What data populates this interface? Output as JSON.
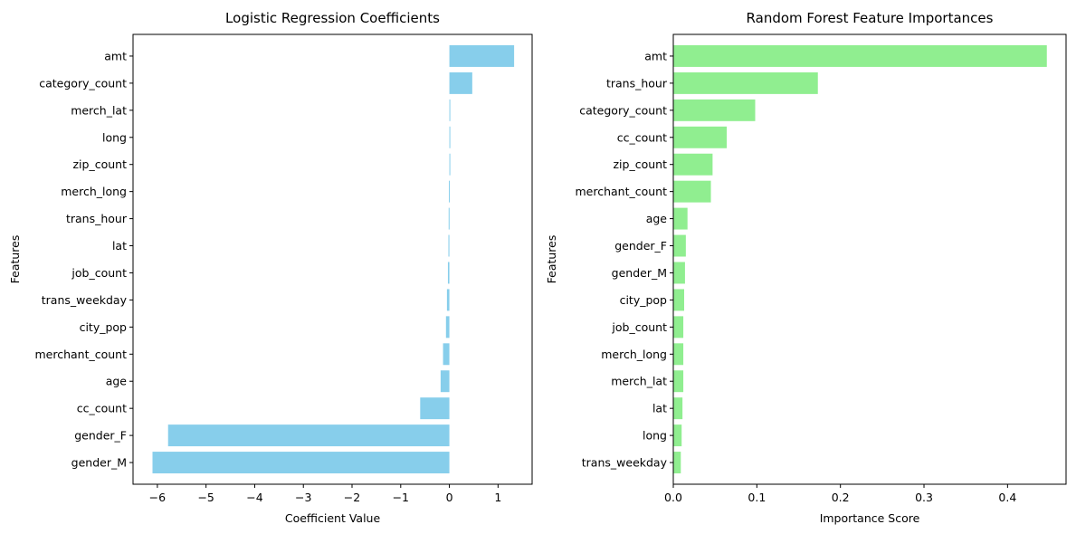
{
  "chart_data": [
    {
      "type": "bar",
      "orientation": "horizontal",
      "title": "Logistic Regression Coefficients",
      "xlabel": "Coefficient Value",
      "ylabel": "Features",
      "bar_color": "#87CEEB",
      "xlim": [
        -6.5,
        1.7
      ],
      "xticks": [
        -6,
        -5,
        -4,
        -3,
        -2,
        -1,
        0,
        1
      ],
      "xtick_labels": [
        "−6",
        "−5",
        "−4",
        "−3",
        "−2",
        "−1",
        "0",
        "1"
      ],
      "grid": false,
      "categories": [
        "amt",
        "category_count",
        "merch_lat",
        "long",
        "zip_count",
        "merch_long",
        "trans_hour",
        "lat",
        "job_count",
        "trans_weekday",
        "city_pop",
        "merchant_count",
        "age",
        "cc_count",
        "gender_F",
        "gender_M"
      ],
      "values": [
        1.33,
        0.47,
        0.005,
        0.003,
        0.002,
        -0.01,
        -0.015,
        -0.02,
        -0.03,
        -0.05,
        -0.07,
        -0.13,
        -0.18,
        -0.6,
        -5.78,
        -6.1
      ]
    },
    {
      "type": "bar",
      "orientation": "horizontal",
      "title": "Random Forest Feature Importances",
      "xlabel": "Importance Score",
      "ylabel": "Features",
      "bar_color": "#90EE90",
      "xlim": [
        0,
        0.47
      ],
      "xticks": [
        0,
        0.1,
        0.2,
        0.3,
        0.4
      ],
      "xtick_labels": [
        "0.0",
        "0.1",
        "0.2",
        "0.3",
        "0.4"
      ],
      "grid": false,
      "categories": [
        "amt",
        "trans_hour",
        "category_count",
        "cc_count",
        "zip_count",
        "merchant_count",
        "age",
        "gender_F",
        "gender_M",
        "city_pop",
        "job_count",
        "merch_long",
        "merch_lat",
        "lat",
        "long",
        "trans_weekday"
      ],
      "values": [
        0.447,
        0.173,
        0.098,
        0.064,
        0.047,
        0.045,
        0.017,
        0.015,
        0.014,
        0.013,
        0.012,
        0.012,
        0.012,
        0.011,
        0.01,
        0.009
      ]
    }
  ]
}
